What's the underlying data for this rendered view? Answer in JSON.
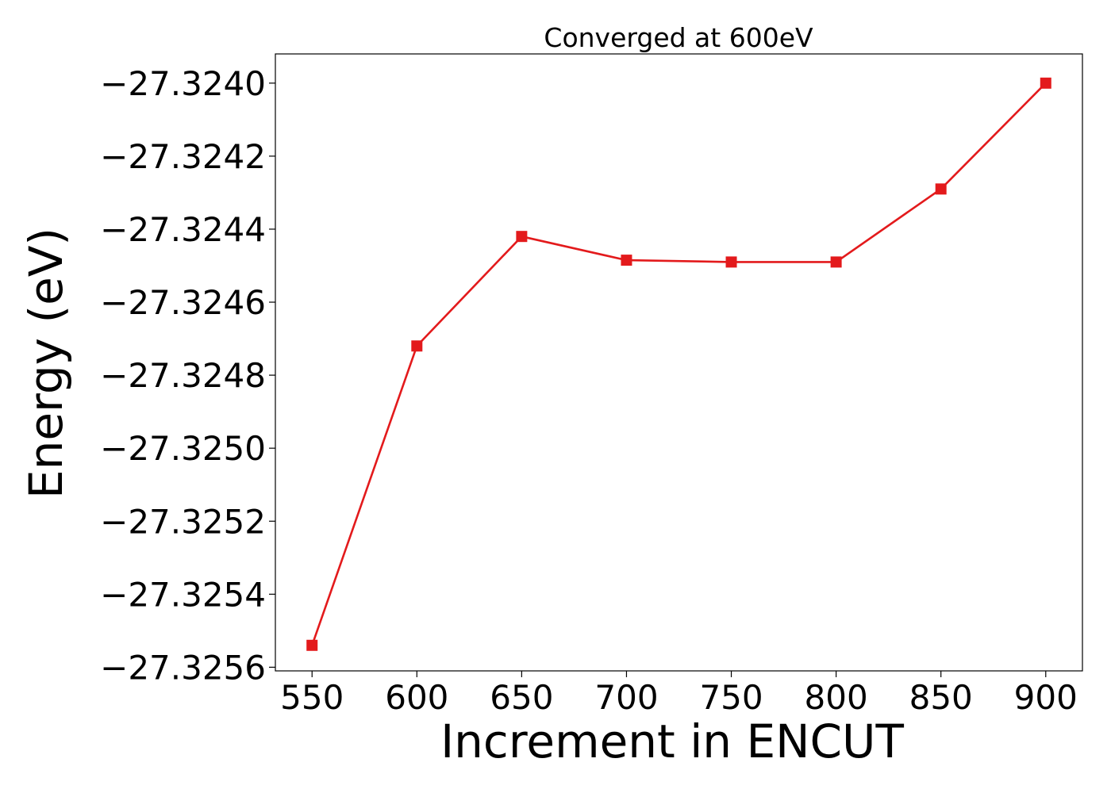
{
  "chart_data": {
    "type": "line",
    "title": "Converged at 600eV",
    "xlabel": "Increment in ENCUT",
    "ylabel": "Energy (eV)",
    "x": [
      550,
      600,
      650,
      700,
      750,
      800,
      850,
      900
    ],
    "series": [
      {
        "values": [
          -27.32554,
          -27.32472,
          -27.32442,
          -27.324485,
          -27.32449,
          -27.32449,
          -27.32429,
          -27.324
        ],
        "color": "#e31a1c",
        "marker": "square"
      }
    ],
    "xlim": [
      532.5,
      917.5
    ],
    "ylim": [
      -27.32561,
      -27.32392
    ],
    "xticks": [
      550,
      600,
      650,
      700,
      750,
      800,
      850,
      900
    ],
    "xtick_labels": [
      "550",
      "600",
      "650",
      "700",
      "750",
      "800",
      "850",
      "900"
    ],
    "yticks": [
      -27.3256,
      -27.3254,
      -27.3252,
      -27.325,
      -27.3248,
      -27.3246,
      -27.3244,
      -27.3242,
      -27.324
    ],
    "ytick_labels": [
      "−27.3256",
      "−27.3254",
      "−27.3252",
      "−27.3250",
      "−27.3248",
      "−27.3246",
      "−27.3244",
      "−27.3242",
      "−27.3240"
    ],
    "grid": false,
    "legend": "none"
  }
}
